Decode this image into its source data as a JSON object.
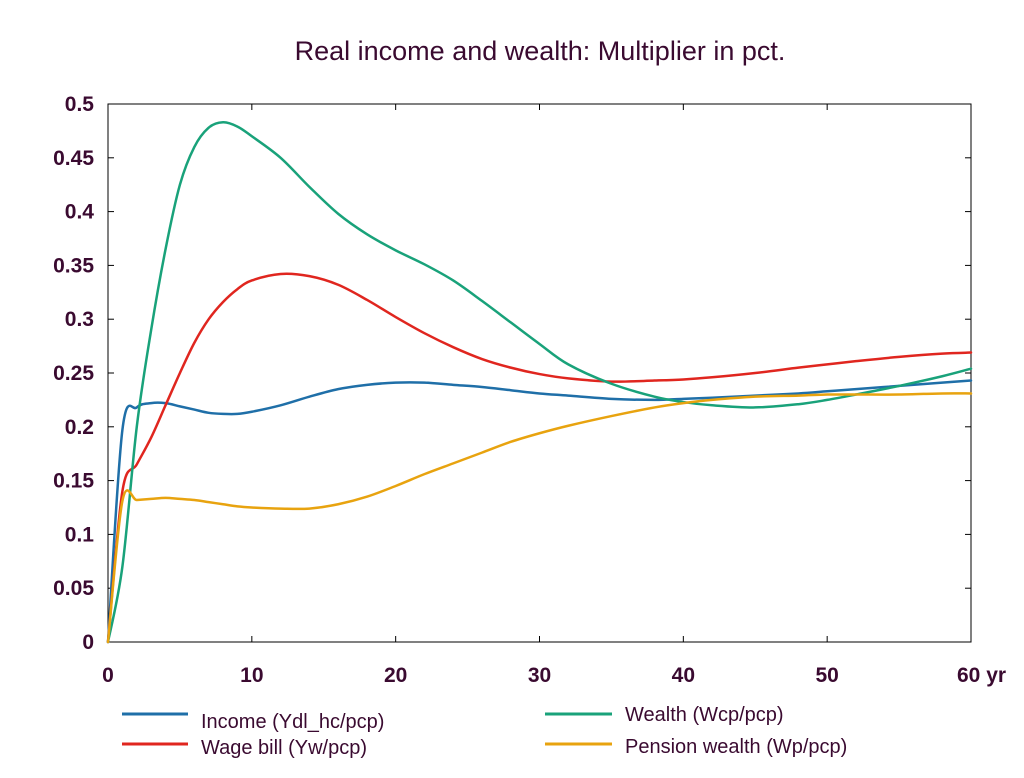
{
  "chart_data": {
    "type": "line",
    "title": "Real income and wealth: Multiplier in pct.",
    "xlabel": "",
    "ylabel": "",
    "xlim": [
      0,
      60
    ],
    "ylim": [
      0,
      0.5
    ],
    "x_ticks": [
      0,
      10,
      20,
      30,
      40,
      50,
      60
    ],
    "x_tick_labels": [
      "0",
      "10",
      "20",
      "30",
      "40",
      "50",
      "60 yr"
    ],
    "y_ticks": [
      0,
      0.05,
      0.1,
      0.15,
      0.2,
      0.25,
      0.3,
      0.35,
      0.4,
      0.45,
      0.5
    ],
    "y_tick_labels": [
      "0",
      "0.05",
      "0.1",
      "0.15",
      "0.2",
      "0.25",
      "0.3",
      "0.35",
      "0.4",
      "0.45",
      "0.5"
    ],
    "grid": false,
    "legend_position": "bottom",
    "x": [
      0,
      1,
      2,
      3,
      4,
      5,
      6,
      7,
      8,
      9,
      10,
      12,
      14,
      16,
      18,
      20,
      22,
      24,
      26,
      28,
      30,
      32,
      35,
      38,
      40,
      42,
      45,
      48,
      50,
      52,
      55,
      58,
      60
    ],
    "series": [
      {
        "name": "Income (Ydl_hc/pcp)",
        "color": "#1f6fa8",
        "values": [
          0,
          0.197,
          0.218,
          0.222,
          0.222,
          0.219,
          0.216,
          0.213,
          0.212,
          0.212,
          0.214,
          0.22,
          0.228,
          0.235,
          0.239,
          0.241,
          0.241,
          0.239,
          0.237,
          0.234,
          0.231,
          0.229,
          0.226,
          0.225,
          0.226,
          0.227,
          0.229,
          0.231,
          0.233,
          0.235,
          0.238,
          0.241,
          0.243
        ]
      },
      {
        "name": "Wage bill (Yw/pcp)",
        "color": "#e0261f",
        "values": [
          0,
          0.14,
          0.165,
          0.19,
          0.22,
          0.25,
          0.278,
          0.3,
          0.316,
          0.328,
          0.336,
          0.342,
          0.34,
          0.332,
          0.318,
          0.302,
          0.287,
          0.274,
          0.263,
          0.255,
          0.249,
          0.245,
          0.242,
          0.243,
          0.244,
          0.246,
          0.25,
          0.255,
          0.258,
          0.261,
          0.265,
          0.268,
          0.269
        ]
      },
      {
        "name": "Wealth (Wcp/pcp)",
        "color": "#19a27a",
        "values": [
          0,
          0.07,
          0.2,
          0.29,
          0.365,
          0.425,
          0.46,
          0.478,
          0.483,
          0.479,
          0.47,
          0.45,
          0.423,
          0.398,
          0.379,
          0.364,
          0.351,
          0.336,
          0.317,
          0.297,
          0.277,
          0.258,
          0.24,
          0.228,
          0.223,
          0.22,
          0.218,
          0.221,
          0.225,
          0.23,
          0.238,
          0.247,
          0.254
        ]
      },
      {
        "name": "Pension wealth (Wp/pcp)",
        "color": "#e8a30f",
        "values": [
          0,
          0.131,
          0.132,
          0.133,
          0.134,
          0.133,
          0.132,
          0.13,
          0.128,
          0.126,
          0.125,
          0.124,
          0.124,
          0.128,
          0.135,
          0.145,
          0.156,
          0.166,
          0.176,
          0.186,
          0.194,
          0.201,
          0.21,
          0.218,
          0.222,
          0.225,
          0.228,
          0.229,
          0.23,
          0.23,
          0.23,
          0.231,
          0.231
        ]
      }
    ]
  }
}
